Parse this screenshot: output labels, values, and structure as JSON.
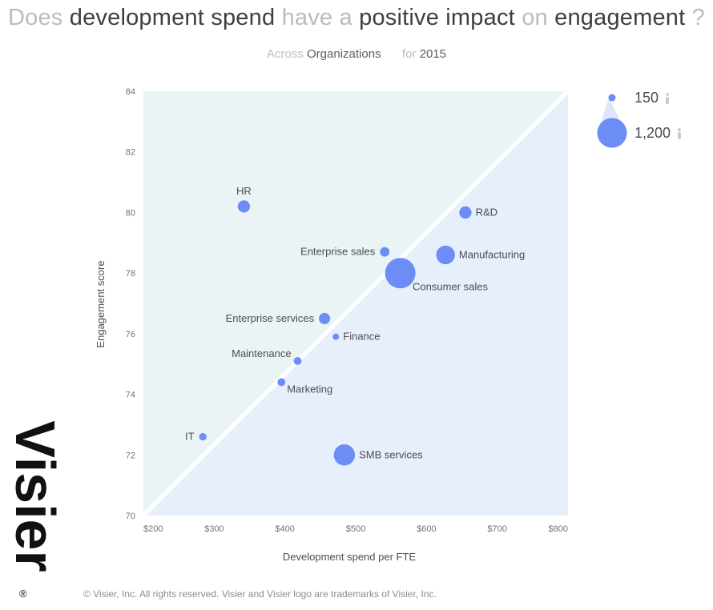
{
  "title": {
    "w1": "Does",
    "w2": "development spend",
    "w3": "have a",
    "w4": "positive impact",
    "w5": "on",
    "w6": "engagement",
    "w7": "?"
  },
  "subtitle": {
    "across": "Across",
    "dimension": "Organizations",
    "for": "for",
    "year": "2015"
  },
  "legend": {
    "small_value": "150",
    "large_value": "1,200",
    "person_icon": "person-icon"
  },
  "brand": {
    "logo_text": "Visier",
    "registered": "®",
    "copyright": "© Visier, Inc. All rights reserved. Visier and Visier logo are trademarks of Visier, Inc."
  },
  "colors": {
    "bubble": "#6b8df5",
    "upper_region": "#ebf4f4",
    "lower_region": "#e8effc",
    "diagonal": "#ffffff"
  },
  "chart_data": {
    "type": "scatter",
    "xlabel": "Development spend per FTE",
    "ylabel": "Engagement score",
    "xlim": [
      200,
      800
    ],
    "ylim": [
      70,
      84
    ],
    "xticks": [
      200,
      300,
      400,
      500,
      600,
      700,
      800
    ],
    "xtick_labels": [
      "$200",
      "$300",
      "$400",
      "$500",
      "$600",
      "$700",
      "$800"
    ],
    "yticks": [
      70,
      72,
      74,
      76,
      78,
      80,
      82,
      84
    ],
    "ytick_labels": [
      "70",
      "72",
      "74",
      "76",
      "78",
      "80",
      "82",
      "84"
    ],
    "size_legend": [
      150,
      1200
    ],
    "points": [
      {
        "label": "HR",
        "x": 342,
        "y": 80.2,
        "size": 330,
        "label_pos": "top"
      },
      {
        "label": "R&D",
        "x": 655,
        "y": 80.0,
        "size": 330,
        "label_pos": "right"
      },
      {
        "label": "Enterprise sales",
        "x": 541,
        "y": 78.7,
        "size": 200,
        "label_pos": "left"
      },
      {
        "label": "Manufacturing",
        "x": 627,
        "y": 78.6,
        "size": 640,
        "label_pos": "right"
      },
      {
        "label": "Consumer sales",
        "x": 563,
        "y": 78.0,
        "size": 1200,
        "label_pos": "bottom-right"
      },
      {
        "label": "Enterprise services",
        "x": 456,
        "y": 76.5,
        "size": 280,
        "label_pos": "left"
      },
      {
        "label": "Finance",
        "x": 472,
        "y": 75.9,
        "size": 50,
        "label_pos": "right"
      },
      {
        "label": "Maintenance",
        "x": 418,
        "y": 75.1,
        "size": 120,
        "label_pos": "top-left"
      },
      {
        "label": "Marketing",
        "x": 395,
        "y": 74.4,
        "size": 120,
        "label_pos": "bottom-right"
      },
      {
        "label": "IT",
        "x": 284,
        "y": 72.6,
        "size": 100,
        "label_pos": "left"
      },
      {
        "label": "SMB services",
        "x": 484,
        "y": 72.0,
        "size": 760,
        "label_pos": "right"
      }
    ]
  }
}
